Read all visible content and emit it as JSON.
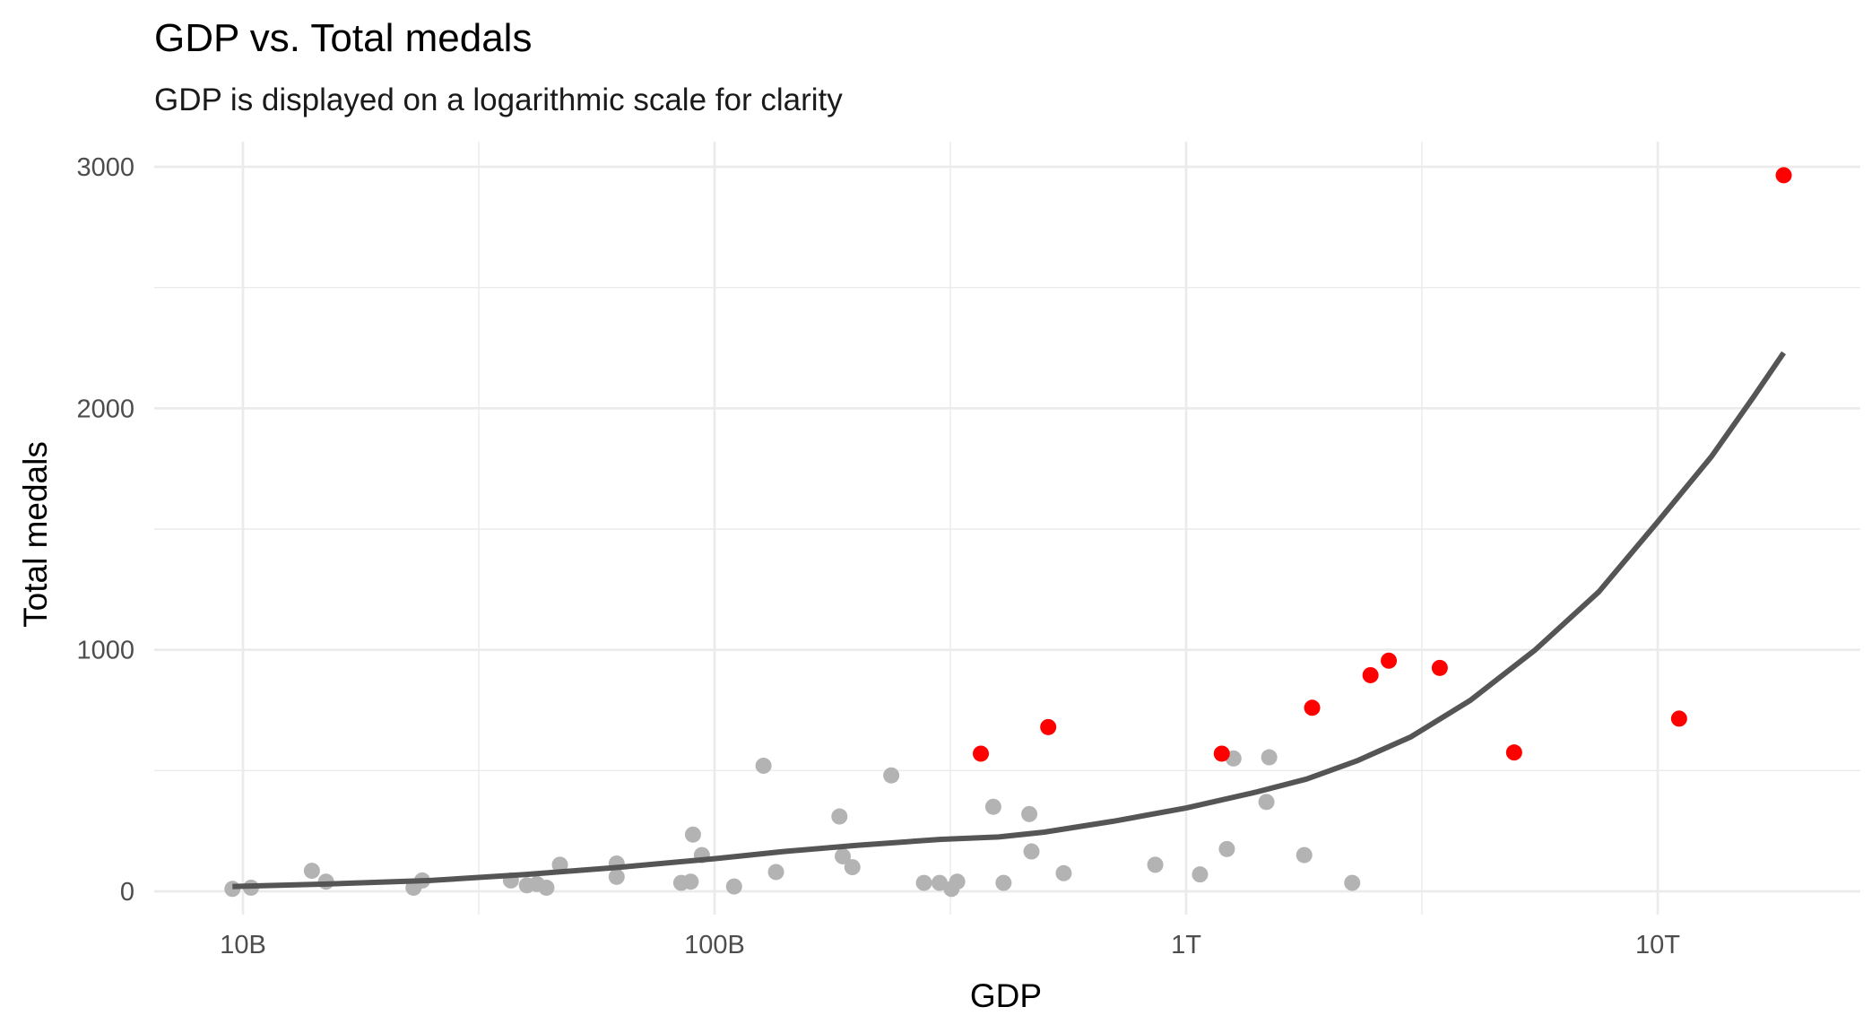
{
  "chart_data": {
    "type": "scatter",
    "title": "GDP vs. Total medals",
    "subtitle": "GDP is displayed on a logarithmic scale for clarity",
    "xlabel": "GDP",
    "ylabel": "Total medals",
    "x_scale": "log10",
    "x_units": "USD",
    "xlim": [
      7500000000,
      26000000000000
    ],
    "ylim": [
      -110,
      3000
    ],
    "x_ticks": [
      {
        "value": 10000000000,
        "label": "10B"
      },
      {
        "value": 100000000000,
        "label": "100B"
      },
      {
        "value": 1000000000000,
        "label": "1T"
      },
      {
        "value": 10000000000000,
        "label": "10T"
      }
    ],
    "x_minor_ticks": [
      31622776602,
      316227766017,
      3162277660168
    ],
    "y_ticks": [
      {
        "value": 0,
        "label": "0"
      },
      {
        "value": 1000,
        "label": "1000"
      },
      {
        "value": 2000,
        "label": "2000"
      },
      {
        "value": 3000,
        "label": "3000"
      }
    ],
    "y_minor_ticks": [
      500,
      1500,
      2500
    ],
    "grid": true,
    "legend": "none",
    "colors": {
      "highlight": "#ff0000",
      "other": "#b3b3b3",
      "trend": "#555555"
    },
    "series": [
      {
        "name": "other",
        "color": "#b3b3b3",
        "points": [
          [
            9500000000.0,
            10
          ],
          [
            10400000000.0,
            15
          ],
          [
            14000000000.0,
            85
          ],
          [
            15000000000.0,
            40
          ],
          [
            23000000000.0,
            15
          ],
          [
            24000000000.0,
            45
          ],
          [
            37000000000.0,
            45
          ],
          [
            40000000000.0,
            25
          ],
          [
            42000000000.0,
            30
          ],
          [
            44000000000.0,
            15
          ],
          [
            47000000000.0,
            110
          ],
          [
            62000000000.0,
            115
          ],
          [
            62000000000.0,
            60
          ],
          [
            85000000000.0,
            35
          ],
          [
            89000000000.0,
            40
          ],
          [
            90000000000.0,
            235
          ],
          [
            94000000000.0,
            150
          ],
          [
            110000000000.0,
            20
          ],
          [
            127000000000.0,
            520
          ],
          [
            135000000000.0,
            80
          ],
          [
            184000000000.0,
            310
          ],
          [
            187000000000.0,
            145
          ],
          [
            196000000000.0,
            100
          ],
          [
            237000000000.0,
            480
          ],
          [
            278000000000.0,
            35
          ],
          [
            300000000000.0,
            35
          ],
          [
            318000000000.0,
            10
          ],
          [
            327000000000.0,
            40
          ],
          [
            390000000000.0,
            350
          ],
          [
            410000000000.0,
            35
          ],
          [
            465000000000.0,
            320
          ],
          [
            470000000000.0,
            165
          ],
          [
            550000000000.0,
            75
          ],
          [
            860000000000.0,
            110
          ],
          [
            1070000000000.0,
            70
          ],
          [
            1220000000000.0,
            175
          ],
          [
            1260000000000.0,
            550
          ],
          [
            1480000000000.0,
            370
          ],
          [
            1500000000000.0,
            555
          ],
          [
            1780000000000.0,
            150
          ],
          [
            2250000000000.0,
            35
          ]
        ]
      },
      {
        "name": "highlighted",
        "color": "#ff0000",
        "points": [
          [
            367000000000.0,
            570
          ],
          [
            510000000000.0,
            680
          ],
          [
            1190000000000.0,
            570
          ],
          [
            1850000000000.0,
            760
          ],
          [
            2460000000000.0,
            895
          ],
          [
            2690000000000.0,
            955
          ],
          [
            3450000000000.0,
            925
          ],
          [
            4960000000000.0,
            575
          ],
          [
            11100000000000.0,
            715
          ],
          [
            18500000000000.0,
            2965
          ]
        ]
      }
    ],
    "trend_line": {
      "name": "smooth",
      "color": "#555555",
      "points": [
        [
          9500000000.0,
          20
        ],
        [
          15000000000.0,
          30
        ],
        [
          25000000000.0,
          45
        ],
        [
          40000000000.0,
          70
        ],
        [
          63000000000.0,
          100
        ],
        [
          100000000000.0,
          135
        ],
        [
          140000000000.0,
          165
        ],
        [
          200000000000.0,
          190
        ],
        [
          300000000000.0,
          215
        ],
        [
          400000000000.0,
          225
        ],
        [
          500000000000.0,
          245
        ],
        [
          700000000000.0,
          290
        ],
        [
          1000000000000.0,
          345
        ],
        [
          1400000000000.0,
          410
        ],
        [
          1800000000000.0,
          465
        ],
        [
          2300000000000.0,
          540
        ],
        [
          3000000000000.0,
          640
        ],
        [
          4000000000000.0,
          790
        ],
        [
          5500000000000.0,
          1000
        ],
        [
          7500000000000.0,
          1240
        ],
        [
          10000000000000.0,
          1530
        ],
        [
          13000000000000.0,
          1800
        ],
        [
          16000000000000.0,
          2050
        ],
        [
          18500000000000.0,
          2230
        ]
      ]
    }
  }
}
